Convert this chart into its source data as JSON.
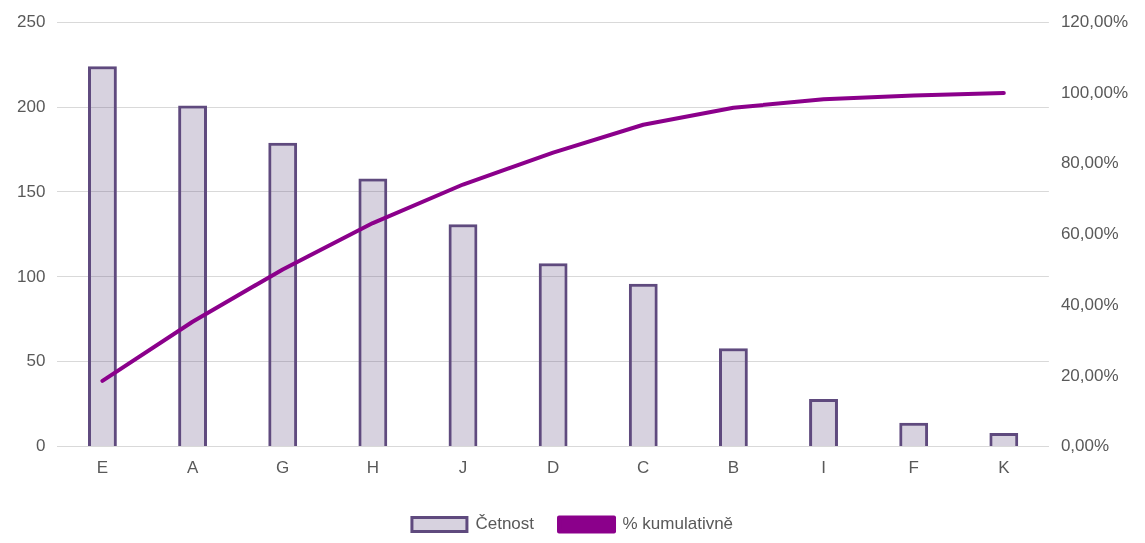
{
  "chart_data": {
    "type": "bar",
    "categories": [
      "E",
      "A",
      "G",
      "H",
      "J",
      "D",
      "C",
      "B",
      "I",
      "F",
      "K"
    ],
    "series": [
      {
        "name": "Četnost",
        "color": "#5f4a7e",
        "values": [
          224,
          201,
          179,
          158,
          131,
          108,
          96,
          58,
          28,
          14,
          8
        ]
      },
      {
        "name": "% kumulativně",
        "type": "line",
        "axis": "y2",
        "color": "#8b008b",
        "values": [
          18.6,
          35.3,
          50.1,
          63.2,
          74.1,
          83.1,
          91.0,
          95.8,
          98.2,
          99.3,
          100
        ]
      }
    ],
    "ylim": [
      0,
      250
    ],
    "yticks": [
      0,
      50,
      100,
      150,
      200,
      250
    ],
    "y2lim": [
      0,
      120
    ],
    "y2ticks": [
      {
        "value": 0,
        "label": "0,00%"
      },
      {
        "value": 20,
        "label": "20,00%"
      },
      {
        "value": 40,
        "label": "40,00%"
      },
      {
        "value": 60,
        "label": "60,00%"
      },
      {
        "value": 80,
        "label": "80,00%"
      },
      {
        "value": 100,
        "label": "100,00%"
      },
      {
        "value": 120,
        "label": "120,00%"
      }
    ],
    "grid": "y",
    "legend": "bottom",
    "marker": "none",
    "line_style": "solid"
  }
}
